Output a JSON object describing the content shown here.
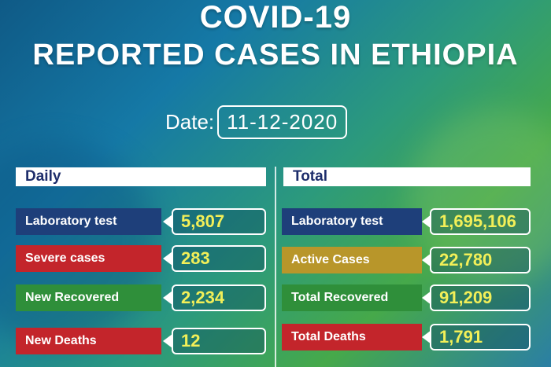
{
  "header": {
    "title_line1": "COVID-19",
    "title_line2": "REPORTED CASES IN ETHIOPIA"
  },
  "date": {
    "label": "Date:",
    "value": "11-12-2020"
  },
  "daily": {
    "heading": "Daily",
    "items": [
      {
        "label": "Laboratory test",
        "value": "5,807",
        "color": "#1e3f7a"
      },
      {
        "label": "Severe cases",
        "value": "283",
        "color": "#c3252b"
      },
      {
        "label": "New Recovered",
        "value": "2,234",
        "color": "#2f8f3a"
      },
      {
        "label": "New Deaths",
        "value": "12",
        "color": "#c3252b"
      }
    ]
  },
  "total": {
    "heading": "Total",
    "items": [
      {
        "label": "Laboratory test",
        "value": "1,695,106",
        "color": "#1e3f7a"
      },
      {
        "label": "Active Cases",
        "value": "22,780",
        "color": "#b8962a"
      },
      {
        "label": "Total Recovered",
        "value": "91,209",
        "color": "#2f8f3a"
      },
      {
        "label": "Total Deaths",
        "value": "1,791",
        "color": "#c3252b"
      }
    ]
  }
}
